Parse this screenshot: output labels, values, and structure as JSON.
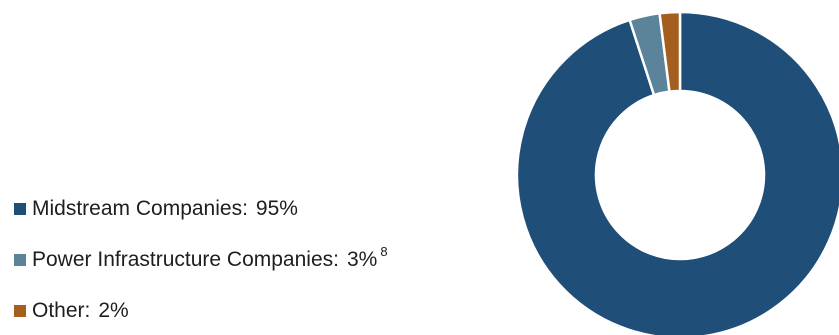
{
  "chart_data": {
    "type": "pie",
    "donut": true,
    "series": [
      {
        "label": "Midstream Companies:",
        "value_label": "95%",
        "value": 95,
        "color": "#1f4e79",
        "footnote": ""
      },
      {
        "label": "Power Infrastructure Companies:",
        "value_label": "3%",
        "value": 3,
        "color": "#5b849b",
        "footnote": "8"
      },
      {
        "label": "Other:",
        "value_label": "2%",
        "value": 2,
        "color": "#a45f1e",
        "footnote": ""
      }
    ],
    "legend_position": "left"
  }
}
